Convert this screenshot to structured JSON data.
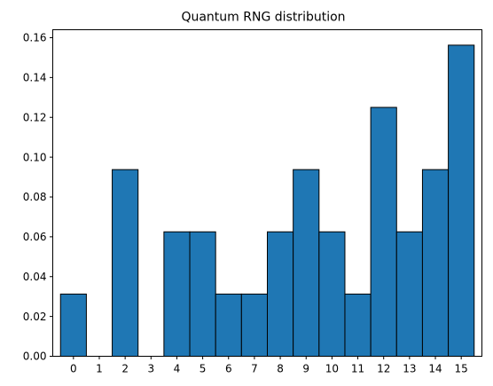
{
  "chart_data": {
    "type": "bar",
    "title": "Quantum RNG distribution",
    "xlabel": "",
    "ylabel": "",
    "categories": [
      "0",
      "1",
      "2",
      "3",
      "4",
      "5",
      "6",
      "7",
      "8",
      "9",
      "10",
      "11",
      "12",
      "13",
      "14",
      "15"
    ],
    "values": [
      0.03125,
      0.0,
      0.09375,
      0.0,
      0.0625,
      0.0625,
      0.03125,
      0.03125,
      0.0625,
      0.09375,
      0.0625,
      0.03125,
      0.125,
      0.0625,
      0.09375,
      0.15625
    ],
    "ylim": [
      0,
      0.164
    ],
    "yticks": [
      "0.00",
      "0.02",
      "0.04",
      "0.06",
      "0.08",
      "0.10",
      "0.12",
      "0.14",
      "0.16"
    ],
    "grid": false,
    "legend": "none",
    "bar_color": "#1f77b4",
    "edge_color": "#000000"
  }
}
